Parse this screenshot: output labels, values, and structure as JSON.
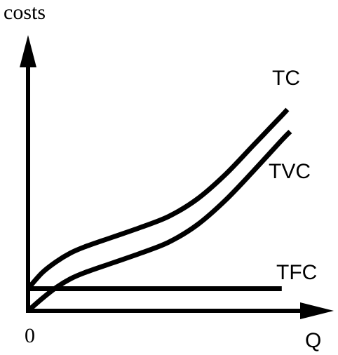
{
  "chart_data": {
    "type": "line",
    "title": "",
    "ylabel": "costs",
    "xlabel": "Q",
    "origin_label": "0",
    "ticks": false,
    "grid": false,
    "legend": "none (series labeled at line ends)",
    "xlim": [
      0,
      10
    ],
    "ylim": [
      0,
      10
    ],
    "series": [
      {
        "name": "TC",
        "x": [
          0.0,
          0.5,
          1.0,
          1.5,
          2.0,
          3.0,
          4.0,
          5.0,
          6.0,
          7.0,
          8.0,
          9.0,
          9.2
        ],
        "y": [
          0.9,
          1.55,
          2.0,
          2.35,
          2.6,
          3.0,
          3.4,
          3.85,
          4.55,
          5.55,
          6.75,
          7.95,
          8.2
        ]
      },
      {
        "name": "TVC",
        "x": [
          0.0,
          0.5,
          1.0,
          1.5,
          2.0,
          3.0,
          4.0,
          5.0,
          6.0,
          7.0,
          8.0,
          9.0,
          9.3
        ],
        "y": [
          0.0,
          0.5,
          0.95,
          1.3,
          1.55,
          1.95,
          2.35,
          2.8,
          3.5,
          4.5,
          5.7,
          6.95,
          7.3
        ]
      },
      {
        "name": "TFC",
        "x": [
          0.0,
          9.0
        ],
        "y": [
          0.9,
          0.9
        ]
      }
    ],
    "colors": {
      "lines": "#000000",
      "axes": "#000000",
      "background": "#ffffff"
    }
  }
}
